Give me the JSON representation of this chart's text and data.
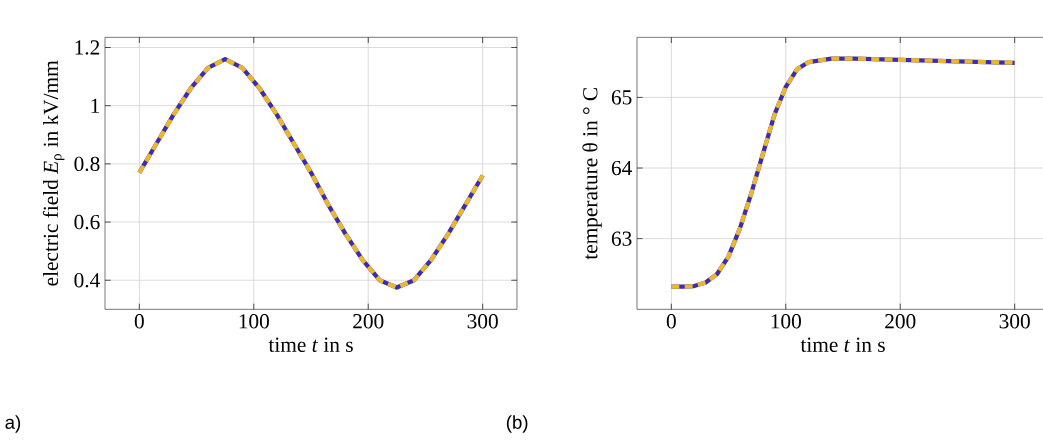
{
  "chart_data": [
    {
      "type": "line",
      "xlabel": "time *t* in s",
      "ylabel": "electric field *E*$_{ρ}$ in kV/mm",
      "annotations": [
        "a)"
      ],
      "xlim": [
        -30,
        330
      ],
      "ylim": [
        0.3,
        1.235
      ],
      "xticks": [
        0,
        100,
        200,
        300
      ],
      "yticks": [
        0.4,
        0.6,
        0.8,
        {
          "value": 1,
          "label": "1"
        },
        1.2
      ],
      "grid": true,
      "x": [
        0,
        15,
        30,
        45,
        60,
        75,
        90,
        105,
        120,
        135,
        150,
        165,
        180,
        195,
        210,
        225,
        240,
        255,
        270,
        285,
        300
      ],
      "series": [
        {
          "color": "#3f2bb0",
          "line_style": "solid",
          "values": [
            0.77,
            0.87,
            0.97,
            1.06,
            1.13,
            1.16,
            1.13,
            1.06,
            0.97,
            0.87,
            0.77,
            0.66,
            0.56,
            0.47,
            0.4,
            0.375,
            0.4,
            0.47,
            0.56,
            0.66,
            0.76
          ]
        },
        {
          "color": "#e9b830",
          "line_style": "dashed",
          "values": [
            0.77,
            0.87,
            0.97,
            1.06,
            1.13,
            1.16,
            1.13,
            1.06,
            0.97,
            0.87,
            0.77,
            0.66,
            0.56,
            0.47,
            0.4,
            0.375,
            0.4,
            0.47,
            0.56,
            0.66,
            0.76
          ]
        }
      ]
    },
    {
      "type": "line",
      "xlabel": "time *t* in s",
      "ylabel": "temperature θ in ° C",
      "annotations": [
        "(b)"
      ],
      "xlim": [
        -30,
        330
      ],
      "ylim": [
        62.0,
        65.85
      ],
      "xticks": [
        0,
        100,
        200,
        300
      ],
      "yticks": [
        63,
        64,
        65
      ],
      "grid": true,
      "x": [
        0,
        10,
        20,
        30,
        40,
        50,
        60,
        70,
        80,
        90,
        100,
        110,
        120,
        140,
        160,
        200,
        250,
        300
      ],
      "series": [
        {
          "color": "#3f2bb0",
          "line_style": "solid",
          "values": [
            62.32,
            62.32,
            62.33,
            62.38,
            62.5,
            62.75,
            63.15,
            63.65,
            64.2,
            64.75,
            65.15,
            65.4,
            65.5,
            65.55,
            65.55,
            65.53,
            65.51,
            65.49
          ]
        },
        {
          "color": "#e9b830",
          "line_style": "dashed",
          "values": [
            62.32,
            62.32,
            62.33,
            62.38,
            62.5,
            62.75,
            63.15,
            63.65,
            64.2,
            64.75,
            65.15,
            65.4,
            65.5,
            65.55,
            65.55,
            65.53,
            65.51,
            65.49
          ]
        }
      ]
    }
  ]
}
